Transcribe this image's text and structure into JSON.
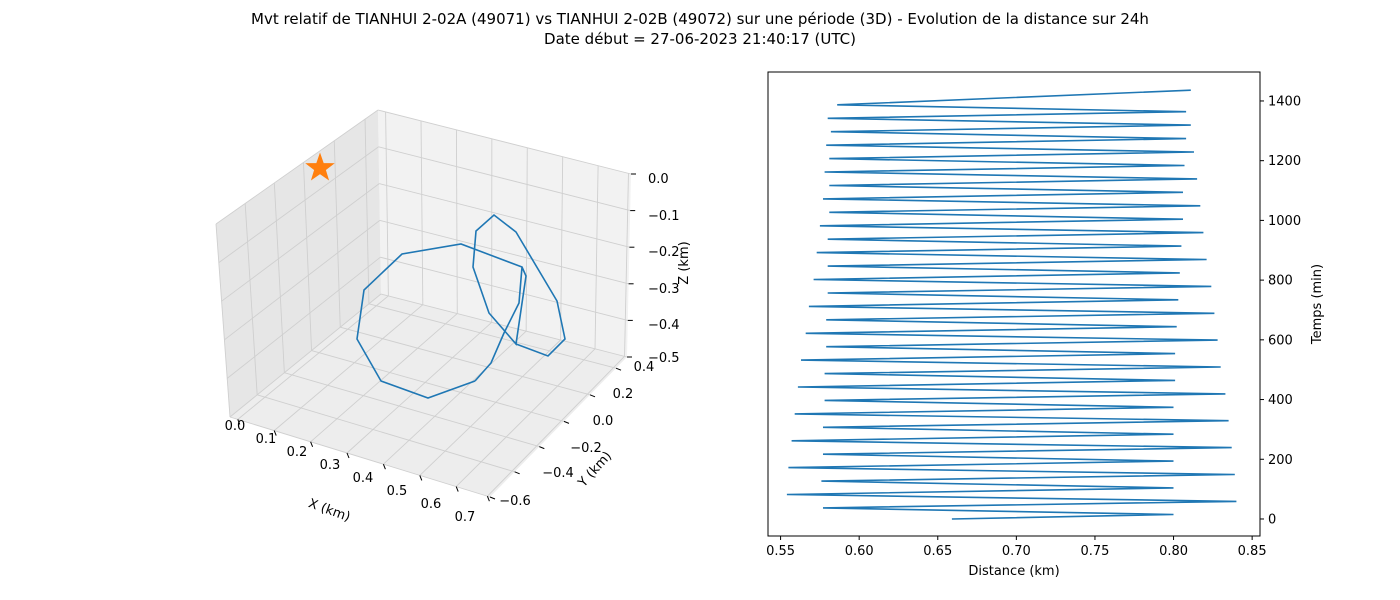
{
  "figure": {
    "title_line1": "Mvt relatif de TIANHUI 2-02A (49071) vs TIANHUI 2-02B (49072) sur une période (3D) - Evolution de la distance sur 24h",
    "title_line2": "Date début = 27-06-2023 21:40:17 (UTC)"
  },
  "chart_data": [
    {
      "type": "line",
      "subtype": "3d",
      "xlabel": "X (km)",
      "ylabel": "Y (km)",
      "zlabel": "Z (km)",
      "xticks": [
        "0.0",
        "0.1",
        "0.2",
        "0.3",
        "0.4",
        "0.5",
        "0.6",
        "0.7"
      ],
      "yticks": [
        "−0.6",
        "−0.4",
        "−0.2",
        "0.0",
        "0.2",
        "0.4"
      ],
      "zticks": [
        "0.0",
        "−0.1",
        "−0.2",
        "−0.3",
        "−0.4",
        "−0.5"
      ],
      "xlim": [
        0.0,
        0.7
      ],
      "ylim": [
        -0.6,
        0.45
      ],
      "zlim": [
        -0.5,
        0.0
      ],
      "grid": true,
      "series": [
        {
          "color": "#1f77b4",
          "x": [
            0.28,
            0.22,
            0.14,
            0.06,
            0.05,
            0.09,
            0.2,
            0.34,
            0.47,
            0.52,
            0.57,
            0.6,
            0.63,
            0.65,
            0.63,
            0.56,
            0.5,
            0.47,
            0.48,
            0.54,
            0.58,
            0.56,
            0.5,
            0.45,
            0.38,
            0.28
          ],
          "y": [
            -0.12,
            -0.2,
            -0.25,
            -0.2,
            -0.05,
            0.12,
            0.22,
            0.22,
            0.12,
            0.0,
            -0.05,
            -0.1,
            -0.05,
            0.1,
            0.2,
            0.25,
            0.18,
            0.05,
            -0.08,
            -0.15,
            -0.1,
            0.0,
            0.05,
            0.0,
            -0.05,
            -0.12
          ],
          "z": [
            -0.4,
            -0.45,
            -0.43,
            -0.33,
            -0.2,
            -0.1,
            -0.08,
            -0.12,
            -0.2,
            -0.25,
            -0.3,
            -0.35,
            -0.4,
            -0.42,
            -0.4,
            -0.3,
            -0.15,
            -0.05,
            -0.05,
            -0.15,
            -0.3,
            -0.4,
            -0.42,
            -0.38,
            -0.3,
            -0.4
          ]
        }
      ],
      "marker": {
        "shape": "star",
        "color": "#ff7f0e",
        "x": 0.0,
        "y": 0.0,
        "z": 0.0
      }
    },
    {
      "type": "line",
      "xlabel": "Distance (km)",
      "ylabel": "Temps (min)",
      "xlim": [
        0.542,
        0.855
      ],
      "ylim": [
        -57,
        1497
      ],
      "xticks": [
        0.55,
        0.6,
        0.65,
        0.7,
        0.75,
        0.8,
        0.85
      ],
      "xtick_labels": [
        "0.55",
        "0.60",
        "0.65",
        "0.70",
        "0.75",
        "0.80",
        "0.85"
      ],
      "yticks": [
        0,
        200,
        400,
        600,
        800,
        1000,
        1200,
        1400
      ],
      "ytick_labels": [
        "0",
        "200",
        "400",
        "600",
        "800",
        "1000",
        "1200",
        "1400"
      ],
      "yaxis_position": "right",
      "grid": false,
      "series": [
        {
          "color": "#1f77b4",
          "x": [
            0.659,
            0.8,
            0.577,
            0.84,
            0.554,
            0.8,
            0.576,
            0.839,
            0.555,
            0.8,
            0.577,
            0.837,
            0.557,
            0.8,
            0.577,
            0.835,
            0.559,
            0.8,
            0.578,
            0.833,
            0.561,
            0.801,
            0.578,
            0.83,
            0.563,
            0.801,
            0.579,
            0.828,
            0.566,
            0.802,
            0.579,
            0.826,
            0.568,
            0.803,
            0.58,
            0.824,
            0.571,
            0.804,
            0.58,
            0.821,
            0.573,
            0.805,
            0.58,
            0.819,
            0.575,
            0.806,
            0.581,
            0.817,
            0.577,
            0.806,
            0.581,
            0.815,
            0.578,
            0.807,
            0.581,
            0.813,
            0.579,
            0.808,
            0.582,
            0.811,
            0.58,
            0.808,
            0.586,
            0.811
          ],
          "y": [
            0,
            15,
            37,
            59,
            82,
            104,
            127,
            149,
            172,
            194,
            217,
            239,
            262,
            284,
            307,
            329,
            352,
            374,
            397,
            419,
            442,
            464,
            487,
            509,
            532,
            554,
            577,
            599,
            622,
            644,
            667,
            689,
            712,
            734,
            757,
            779,
            802,
            824,
            847,
            869,
            892,
            914,
            937,
            959,
            982,
            1004,
            1027,
            1049,
            1072,
            1094,
            1117,
            1139,
            1162,
            1184,
            1207,
            1229,
            1252,
            1274,
            1297,
            1319,
            1342,
            1364,
            1387,
            1436
          ]
        }
      ]
    }
  ]
}
